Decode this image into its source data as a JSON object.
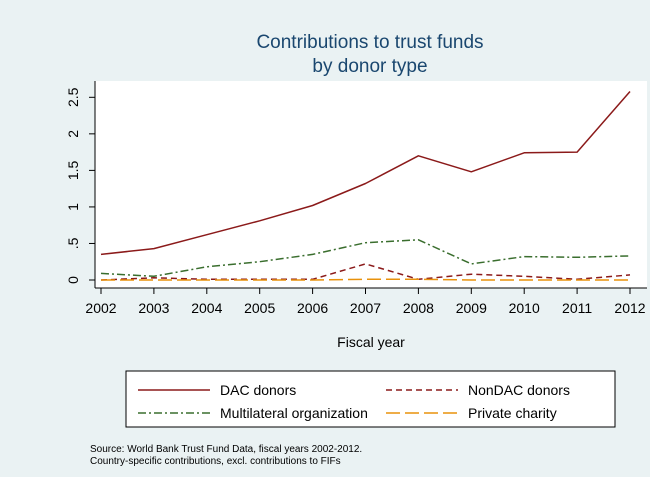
{
  "chart_data": {
    "type": "line",
    "title_lines": [
      "Contributions to trust funds",
      "by donor type"
    ],
    "xlabel": "Fiscal year",
    "ylabel": "",
    "x": [
      2002,
      2003,
      2004,
      2005,
      2006,
      2007,
      2008,
      2009,
      2010,
      2011,
      2012
    ],
    "x_ticks": [
      "2002",
      "2003",
      "2004",
      "2005",
      "2006",
      "2007",
      "2008",
      "2009",
      "2010",
      "2011",
      "2012"
    ],
    "y_ticks": [
      {
        "value": 0,
        "label": "0"
      },
      {
        "value": 0.5,
        "label": ".5"
      },
      {
        "value": 1,
        "label": "1"
      },
      {
        "value": 1.5,
        "label": "1.5"
      },
      {
        "value": 2,
        "label": "2"
      },
      {
        "value": 2.5,
        "label": "2.5"
      }
    ],
    "xlim": [
      2002,
      2012
    ],
    "ylim": [
      0,
      2.6
    ],
    "grid": false,
    "legend_position": "bottom",
    "series": [
      {
        "name": "DAC donors",
        "color": "#8b1a1a",
        "dash": "solid",
        "values": [
          0.35,
          0.43,
          0.62,
          0.81,
          1.02,
          1.32,
          1.7,
          1.48,
          1.74,
          1.75,
          2.58
        ]
      },
      {
        "name": "NonDAC donors",
        "color": "#8b1a1a",
        "dash": "dash",
        "values": [
          0.0,
          0.03,
          0.01,
          0.01,
          0.01,
          0.22,
          0.01,
          0.08,
          0.05,
          0.01,
          0.07
        ]
      },
      {
        "name": "Multilateral organization",
        "color": "#3a6e2e",
        "dash": "dashdot",
        "values": [
          0.09,
          0.05,
          0.18,
          0.25,
          0.35,
          0.51,
          0.55,
          0.22,
          0.32,
          0.31,
          0.33
        ]
      },
      {
        "name": "Private charity",
        "color": "#e8920c",
        "dash": "longdash",
        "values": [
          0.0,
          0.0,
          0.0,
          0.0,
          0.0,
          0.01,
          0.01,
          0.0,
          0.0,
          0.0,
          0.0
        ]
      }
    ]
  },
  "notes": [
    "Source: World Bank Trust Fund Data, fiscal years 2002-2012.",
    "Country-specific contributions, excl. contributions to FIFs"
  ]
}
